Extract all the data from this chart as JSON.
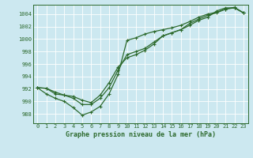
{
  "title": "Graphe pression niveau de la mer (hPa)",
  "bg_color": "#cce8f0",
  "grid_color": "#aaddee",
  "line_color": "#2d6a2d",
  "xlim": [
    -0.5,
    23.5
  ],
  "ylim": [
    986.5,
    1005.5
  ],
  "yticks": [
    988,
    990,
    992,
    994,
    996,
    998,
    1000,
    1002,
    1004
  ],
  "xticks": [
    0,
    1,
    2,
    3,
    4,
    5,
    6,
    7,
    8,
    9,
    10,
    11,
    12,
    13,
    14,
    15,
    16,
    17,
    18,
    19,
    20,
    21,
    22,
    23
  ],
  "line1": [
    992.2,
    992.1,
    991.2,
    991.0,
    990.8,
    990.2,
    989.8,
    991.0,
    993.0,
    995.5,
    997.0,
    997.5,
    998.2,
    999.2,
    1000.5,
    1001.0,
    1001.5,
    1002.2,
    1003.0,
    1003.5,
    1004.5,
    1005.0,
    1005.0,
    1004.2
  ],
  "line2": [
    992.2,
    991.2,
    990.5,
    990.0,
    989.0,
    987.8,
    988.3,
    989.2,
    991.2,
    994.3,
    999.8,
    1000.2,
    1000.8,
    1001.2,
    1001.5,
    1001.8,
    1002.2,
    1002.8,
    1003.5,
    1004.0,
    1004.3,
    1004.8,
    1005.1,
    1004.2
  ],
  "line3": [
    992.2,
    992.1,
    991.5,
    991.0,
    990.5,
    989.5,
    989.5,
    990.5,
    992.2,
    995.0,
    997.5,
    998.0,
    998.5,
    999.5,
    1000.5,
    1001.0,
    1001.5,
    1002.5,
    1003.2,
    1003.8,
    1004.2,
    1004.8,
    1005.0,
    1004.2
  ],
  "title_fontsize": 6.0,
  "tick_fontsize": 5.0
}
